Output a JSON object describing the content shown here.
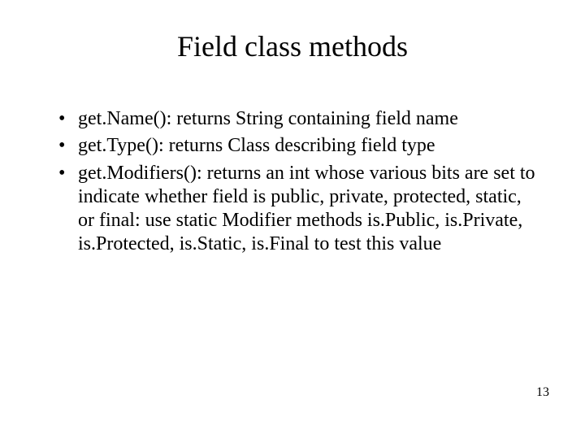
{
  "slide": {
    "title": "Field class methods",
    "bullets": [
      "get.Name(): returns String containing field name",
      "get.Type(): returns Class describing field type",
      "get.Modifiers(): returns an int whose various bits are set to indicate whether field is public, private, protected, static, or final: use static Modifier methods is.Public, is.Private, is.Protected, is.Static, is.Final to test this value"
    ],
    "page_number": "13",
    "colors": {
      "background": "#ffffff",
      "text": "#000000"
    },
    "fonts": {
      "title_size_pt": 36,
      "body_size_pt": 24,
      "pagenum_size_pt": 16,
      "family": "Times New Roman"
    }
  }
}
